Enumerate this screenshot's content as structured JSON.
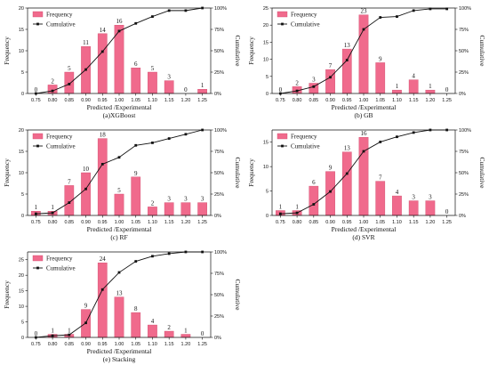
{
  "colors": {
    "bar": "#f06a8c",
    "bar_stroke": "#d04a6c",
    "line": "#111111",
    "axis": "#111111"
  },
  "chart_data": [
    {
      "type": "bar",
      "caption": "(a)XGBoost",
      "xlabel": "Predicted /Experimental",
      "ylabel": "Frequency",
      "y2label": "Cumulative",
      "categories": [
        "0.75",
        "0.80",
        "0.85",
        "0.90",
        "0.95",
        "1.00",
        "1.05",
        "1.10",
        "1.15",
        "1.20",
        "1.25"
      ],
      "ylim": [
        0,
        20
      ],
      "yticks": [
        0,
        5,
        10,
        15,
        20
      ],
      "y2ticks": [
        "0%",
        "25%",
        "50%",
        "75%",
        "100%"
      ],
      "legend": [
        "Frequency",
        "Cumulative"
      ],
      "legend_position": "top-left",
      "series": [
        {
          "name": "Frequency",
          "type": "bar",
          "values": [
            0,
            2,
            5,
            11,
            14,
            16,
            6,
            5,
            3,
            0,
            1
          ],
          "labels": [
            "0",
            "2",
            "5",
            "11",
            "14",
            "16",
            "6",
            "5",
            "3",
            "0",
            "1"
          ]
        },
        {
          "name": "Cumulative",
          "type": "line",
          "values": [
            0,
            3,
            11,
            28,
            49,
            73,
            82,
            90,
            97,
            97,
            100
          ]
        }
      ]
    },
    {
      "type": "bar",
      "caption": "(b) GB",
      "xlabel": "Predicted /Experimental",
      "ylabel": "Frequency",
      "y2label": "Cumulative",
      "categories": [
        "0.75",
        "0.80",
        "0.85",
        "0.90",
        "0.95",
        "1.00",
        "1.05",
        "1.10",
        "1.15",
        "1.20",
        "1.25"
      ],
      "ylim": [
        0,
        25
      ],
      "yticks": [
        0,
        5,
        10,
        15,
        20,
        25
      ],
      "y2ticks": [
        "0%",
        "25%",
        "50%",
        "75%",
        "100%"
      ],
      "legend": [
        "Frequency",
        "Cumulative"
      ],
      "legend_position": "top-left",
      "series": [
        {
          "name": "Frequency",
          "type": "bar",
          "values": [
            0,
            2,
            3,
            7,
            13,
            23,
            9,
            1,
            4,
            1,
            0
          ],
          "labels": [
            "0",
            "2",
            "3",
            "7",
            "13",
            "23",
            "9",
            "1",
            "4",
            "1",
            "0"
          ]
        },
        {
          "name": "Cumulative",
          "type": "line",
          "values": [
            0,
            3,
            8,
            19,
            39,
            75,
            89,
            90,
            97,
            99,
            99
          ]
        }
      ]
    },
    {
      "type": "bar",
      "caption": "(c) RF",
      "xlabel": "Predicted /Experimental",
      "ylabel": "Frequency",
      "y2label": "Cumulative",
      "categories": [
        "0.75",
        "0.80",
        "0.85",
        "0.90",
        "0.95",
        "1.00",
        "1.05",
        "1.10",
        "1.15",
        "1.20",
        "1.25"
      ],
      "ylim": [
        0,
        20
      ],
      "yticks": [
        0,
        5,
        10,
        15,
        20
      ],
      "y2ticks": [
        "0%",
        "25%",
        "50%",
        "75%",
        "100%"
      ],
      "legend": [
        "Frequency",
        "Cumulative"
      ],
      "legend_position": "top-left",
      "series": [
        {
          "name": "Frequency",
          "type": "bar",
          "values": [
            1,
            1,
            7,
            10,
            18,
            5,
            9,
            2,
            3,
            3,
            3
          ],
          "labels": [
            "1",
            "1",
            "7",
            "10",
            "18",
            "5",
            "9",
            "2",
            "3",
            "3",
            "3"
          ]
        },
        {
          "name": "Cumulative",
          "type": "line",
          "values": [
            2,
            3,
            15,
            31,
            60,
            68,
            82,
            85,
            90,
            95,
            100
          ]
        }
      ]
    },
    {
      "type": "bar",
      "caption": "(d) SVR",
      "xlabel": "Predicted /Experimental",
      "ylabel": "Frequency",
      "y2label": "Cumulative",
      "categories": [
        "0.75",
        "0.80",
        "0.85",
        "0.90",
        "0.95",
        "1.00",
        "1.05",
        "1.10",
        "1.15",
        "1.20",
        "1.25"
      ],
      "ylim": [
        0,
        17.5
      ],
      "yticks": [
        0,
        5,
        10,
        15
      ],
      "y2ticks": [
        "0%",
        "25%",
        "50%",
        "75%",
        "100%"
      ],
      "legend": [
        "Frequency",
        "Cumulative"
      ],
      "legend_position": "top-left",
      "series": [
        {
          "name": "Frequency",
          "type": "bar",
          "values": [
            1,
            1,
            6,
            9,
            13,
            16,
            7,
            4,
            3,
            3,
            0
          ],
          "labels": [
            "1",
            "1",
            "6",
            "9",
            "13",
            "16",
            "7",
            "4",
            "3",
            "3",
            "0"
          ]
        },
        {
          "name": "Cumulative",
          "type": "line",
          "values": [
            2,
            3,
            13,
            28,
            49,
            75,
            86,
            92,
            97,
            100,
            100
          ]
        }
      ]
    },
    {
      "type": "bar",
      "caption": "(e) Stacking",
      "xlabel": "Predicted /Experimental",
      "ylabel": "Frequency",
      "y2label": "Cumulative",
      "categories": [
        "0.75",
        "0.80",
        "0.85",
        "0.90",
        "0.95",
        "1.00",
        "1.05",
        "1.10",
        "1.15",
        "1.20",
        "1.25"
      ],
      "ylim": [
        0,
        27.5
      ],
      "yticks": [
        0,
        5,
        10,
        15,
        20,
        25
      ],
      "y2ticks": [
        "0%",
        "25%",
        "50%",
        "75%",
        "100%"
      ],
      "legend": [
        "Frequency",
        "Cumulative"
      ],
      "legend_position": "top-left",
      "series": [
        {
          "name": "Frequency",
          "type": "bar",
          "values": [
            0,
            1,
            1,
            9,
            24,
            13,
            8,
            4,
            2,
            1,
            0
          ],
          "labels": [
            "0",
            "1",
            "1",
            "9",
            "24",
            "13",
            "8",
            "4",
            "2",
            "1",
            "0"
          ]
        },
        {
          "name": "Cumulative",
          "type": "line",
          "values": [
            0,
            2,
            3,
            17,
            56,
            76,
            89,
            95,
            98,
            100,
            100
          ]
        }
      ]
    }
  ]
}
